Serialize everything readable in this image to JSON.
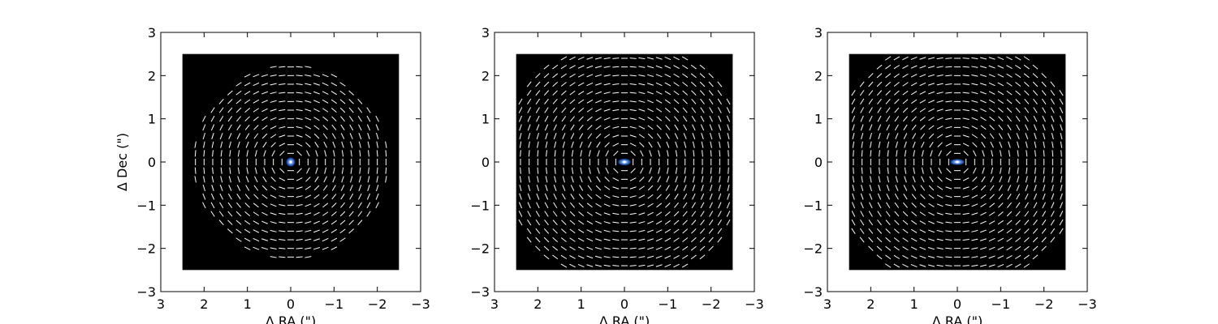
{
  "figure": {
    "background": "#ffffff",
    "image_background": "#000000",
    "vector_color": "#ffffff",
    "source_colors": [
      "#1f4aa8",
      "#4f8ae0",
      "#cfe2ff"
    ]
  },
  "chart_data": [
    {
      "type": "polarization-map",
      "title": "",
      "xlabel": "Δ RA (\")",
      "ylabel": "Δ Dec (\")",
      "xlim": [
        3,
        -3
      ],
      "ylim": [
        -3,
        3
      ],
      "xticks": [
        3,
        2,
        1,
        0,
        -1,
        -2,
        -3
      ],
      "yticks": [
        -3,
        -2,
        -1,
        0,
        1,
        2,
        3
      ],
      "xtick_labels": [
        "3",
        "2",
        "1",
        "0",
        "−1",
        "−2",
        "−3"
      ],
      "ytick_labels": [
        "−3",
        "−2",
        "−1",
        "0",
        "1",
        "2",
        "3"
      ],
      "image_extent": [
        2.5,
        -2.5,
        -2.5,
        2.5
      ],
      "vector_grid_step": 0.2,
      "vector_pattern": "azimuthal",
      "vector_max_radius": 2.25,
      "vector_min_radius": 0.15,
      "source": {
        "x": 0,
        "y": 0,
        "size_x": 0.12,
        "size_y": 0.12
      }
    },
    {
      "type": "polarization-map",
      "title": "",
      "xlabel": "Δ RA (\")",
      "ylabel": "",
      "xlim": [
        3,
        -3
      ],
      "ylim": [
        -3,
        3
      ],
      "xticks": [
        3,
        2,
        1,
        0,
        -1,
        -2,
        -3
      ],
      "yticks": [
        -3,
        -2,
        -1,
        0,
        1,
        2,
        3
      ],
      "xtick_labels": [
        "3",
        "2",
        "1",
        "0",
        "−1",
        "−2",
        "−3"
      ],
      "ytick_labels": [
        "−3",
        "−2",
        "−1",
        "0",
        "1",
        "2",
        "3"
      ],
      "image_extent": [
        2.5,
        -2.5,
        -2.5,
        2.5
      ],
      "vector_grid_step": 0.2,
      "vector_pattern": "azimuthal",
      "vector_max_radius": 2.85,
      "vector_min_radius": 0.15,
      "source": {
        "x": 0,
        "y": 0,
        "size_x": 0.17,
        "size_y": 0.09
      }
    },
    {
      "type": "polarization-map",
      "title": "",
      "xlabel": "Δ RA (\")",
      "ylabel": "",
      "xlim": [
        3,
        -3
      ],
      "ylim": [
        -3,
        3
      ],
      "xticks": [
        3,
        2,
        1,
        0,
        -1,
        -2,
        -3
      ],
      "yticks": [
        -3,
        -2,
        -1,
        0,
        1,
        2,
        3
      ],
      "xtick_labels": [
        "3",
        "2",
        "1",
        "0",
        "−1",
        "−2",
        "−3"
      ],
      "ytick_labels": [
        "−3",
        "−2",
        "−1",
        "0",
        "1",
        "2",
        "3"
      ],
      "image_extent": [
        2.5,
        -2.5,
        -2.5,
        2.5
      ],
      "vector_grid_step": 0.2,
      "vector_pattern": "azimuthal",
      "vector_max_radius": 2.95,
      "vector_min_radius": 0.15,
      "source": {
        "x": 0,
        "y": 0,
        "size_x": 0.19,
        "size_y": 0.08
      }
    }
  ]
}
